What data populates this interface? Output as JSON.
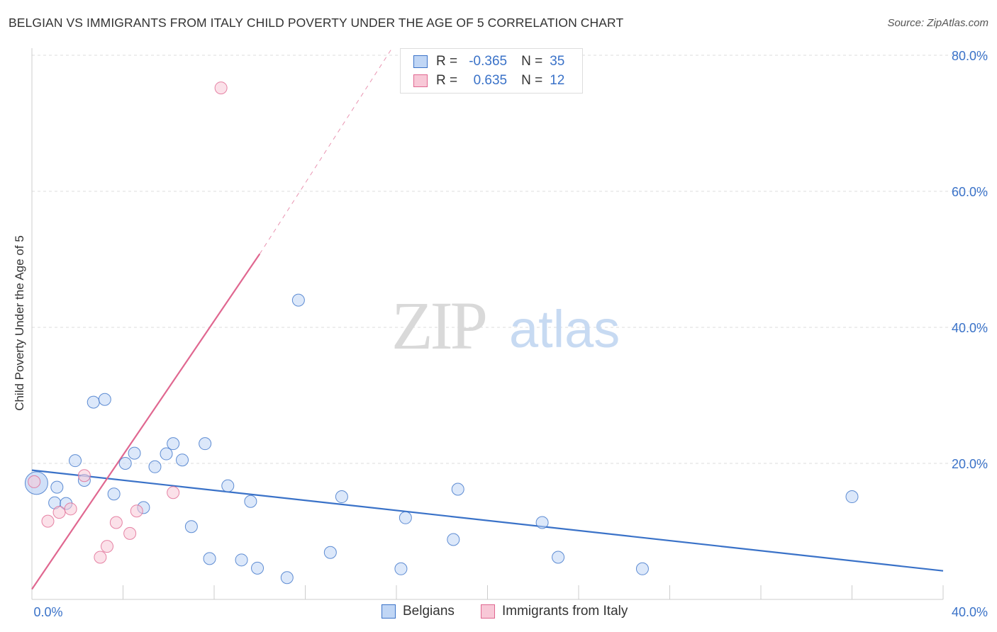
{
  "title": "BELGIAN VS IMMIGRANTS FROM ITALY CHILD POVERTY UNDER THE AGE OF 5 CORRELATION CHART",
  "source": "Source: ZipAtlas.com",
  "watermark": {
    "zip": "ZIP",
    "atlas": "atlas"
  },
  "legend": {
    "rows": [
      {
        "r_label": "R =",
        "r_value": "-0.365",
        "n_label": "N =",
        "n_value": "35"
      },
      {
        "r_label": "R =",
        "r_value": "0.635",
        "n_label": "N =",
        "n_value": "12"
      }
    ]
  },
  "bottom_legend": {
    "series1": "Belgians",
    "series2": "Immigrants from Italy"
  },
  "chart_data": {
    "type": "scatter",
    "title": "BELGIAN VS IMMIGRANTS FROM ITALY CHILD POVERTY UNDER THE AGE OF 5 CORRELATION CHART",
    "xlabel": "",
    "ylabel": "Child Poverty Under the Age of 5",
    "xlim": [
      0,
      40
    ],
    "ylim": [
      0,
      80
    ],
    "x_tick_labels": [
      "0.0%",
      "40.0%"
    ],
    "y_ticks": [
      20,
      40,
      60,
      80
    ],
    "y_tick_labels": [
      "20.0%",
      "40.0%",
      "60.0%",
      "80.0%"
    ],
    "colors": {
      "series1": "#3a72c8",
      "series1_fill": "#c0d6f5",
      "series2": "#e06790",
      "series2_fill": "#f8c8d7",
      "tick_label": "#3a72c8",
      "grid": "#dddddd"
    },
    "series": [
      {
        "name": "Belgians",
        "points": [
          [
            0.2,
            17.1
          ],
          [
            1.0,
            14.2
          ],
          [
            1.1,
            16.5
          ],
          [
            1.5,
            14.1
          ],
          [
            1.9,
            20.4
          ],
          [
            2.3,
            17.5
          ],
          [
            2.7,
            29.0
          ],
          [
            3.2,
            29.4
          ],
          [
            3.6,
            15.5
          ],
          [
            4.1,
            20.0
          ],
          [
            4.5,
            21.5
          ],
          [
            4.9,
            13.5
          ],
          [
            5.4,
            19.5
          ],
          [
            5.9,
            21.4
          ],
          [
            6.2,
            22.9
          ],
          [
            6.6,
            20.5
          ],
          [
            7.0,
            10.7
          ],
          [
            7.6,
            22.9
          ],
          [
            7.8,
            6.0
          ],
          [
            8.6,
            16.7
          ],
          [
            9.2,
            5.8
          ],
          [
            9.6,
            14.4
          ],
          [
            9.9,
            4.6
          ],
          [
            11.2,
            3.2
          ],
          [
            11.7,
            44.0
          ],
          [
            13.1,
            6.9
          ],
          [
            13.6,
            15.1
          ],
          [
            16.2,
            4.5
          ],
          [
            16.4,
            12.0
          ],
          [
            18.5,
            8.8
          ],
          [
            18.7,
            16.2
          ],
          [
            22.4,
            11.3
          ],
          [
            23.1,
            6.2
          ],
          [
            26.8,
            4.5
          ],
          [
            36.0,
            15.1
          ]
        ]
      },
      {
        "name": "Immigrants from Italy",
        "points": [
          [
            0.1,
            17.3
          ],
          [
            0.7,
            11.5
          ],
          [
            1.2,
            12.8
          ],
          [
            1.7,
            13.3
          ],
          [
            2.3,
            18.2
          ],
          [
            3.0,
            6.2
          ],
          [
            3.3,
            7.8
          ],
          [
            3.7,
            11.3
          ],
          [
            4.3,
            9.7
          ],
          [
            4.6,
            13.0
          ],
          [
            6.2,
            15.7
          ],
          [
            8.3,
            75.2
          ]
        ]
      }
    ],
    "trend_lines": [
      {
        "series": "Belgians",
        "from": [
          0,
          19.0
        ],
        "to": [
          40,
          4.2
        ],
        "style": "solid"
      },
      {
        "series": "Immigrants from Italy",
        "from": [
          0,
          1.5
        ],
        "to": [
          10.0,
          50.8
        ],
        "style": "solid"
      },
      {
        "series": "Immigrants from Italy",
        "from": [
          10.0,
          50.8
        ],
        "to": [
          15.8,
          81.0
        ],
        "style": "dashed"
      }
    ]
  }
}
